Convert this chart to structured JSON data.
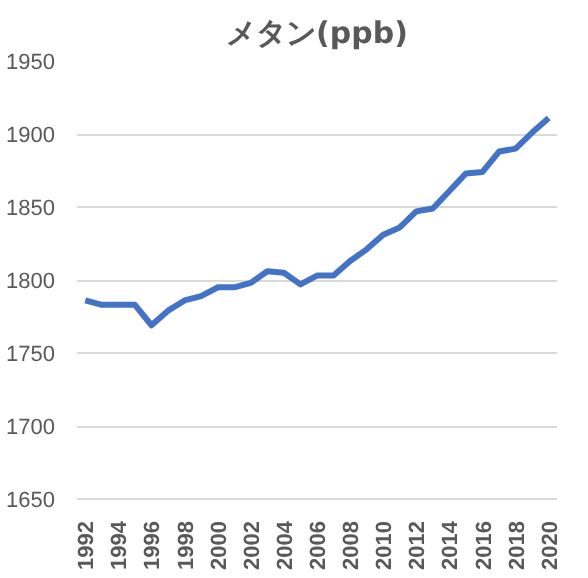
{
  "chart_data": {
    "type": "line",
    "title": "メタン(ppb)",
    "categories": [
      "1992",
      null,
      "1994",
      null,
      "1996",
      null,
      "1998",
      null,
      "2000",
      null,
      "2002",
      null,
      "2004",
      null,
      "2006",
      null,
      "2008",
      null,
      "2010",
      null,
      "2012",
      null,
      "2014",
      null,
      "2016",
      null,
      "2018",
      null,
      "2020"
    ],
    "series": [
      {
        "color": "#4472c4",
        "values": [
          1786,
          1783,
          1783,
          1783,
          1769,
          1779,
          1786,
          1789,
          1795,
          1795,
          1798,
          1806,
          1805,
          1797,
          1803,
          1803,
          1813,
          1821,
          1831,
          1836,
          1847,
          1849,
          1861,
          1873,
          1874,
          1888,
          1890,
          1901,
          1911
        ]
      }
    ],
    "ylim": [
      1650,
      1950
    ],
    "yticks": [
      1650,
      1700,
      1750,
      1800,
      1850,
      1900,
      1950
    ],
    "grid": "y"
  }
}
